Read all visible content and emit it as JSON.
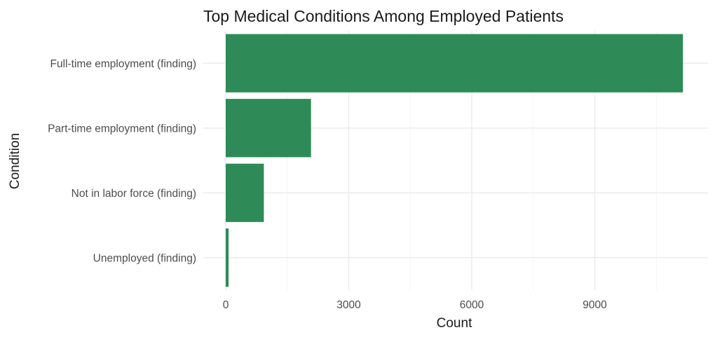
{
  "chart_data": {
    "type": "bar",
    "orientation": "horizontal",
    "title": "Top Medical Conditions Among Employed Patients",
    "xlabel": "Count",
    "ylabel": "Condition",
    "categories": [
      "Full-time employment (finding)",
      "Part-time employment (finding)",
      "Not in labor force (finding)",
      "Unemployed (finding)"
    ],
    "values": [
      11150,
      2080,
      930,
      70
    ],
    "xlim": [
      0,
      11500
    ],
    "x_ticks": [
      0,
      3000,
      6000,
      9000
    ],
    "x_tick_labels": [
      "0",
      "3000",
      "6000",
      "9000"
    ],
    "bar_color": "#2e8b57",
    "grid": true,
    "legend": "none"
  }
}
